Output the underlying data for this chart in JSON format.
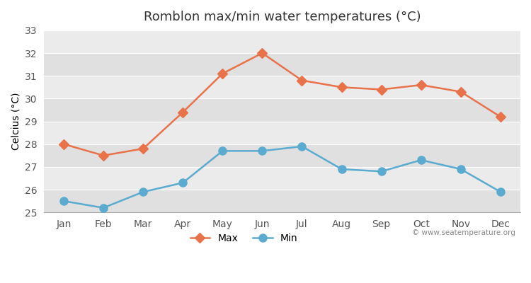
{
  "months": [
    "Jan",
    "Feb",
    "Mar",
    "Apr",
    "May",
    "Jun",
    "Jul",
    "Aug",
    "Sep",
    "Oct",
    "Nov",
    "Dec"
  ],
  "max_temps": [
    28.0,
    27.5,
    27.8,
    29.4,
    31.1,
    32.0,
    30.8,
    30.5,
    30.4,
    30.6,
    30.3,
    29.2
  ],
  "min_temps": [
    25.5,
    25.2,
    25.9,
    26.3,
    27.7,
    27.7,
    27.9,
    26.9,
    26.8,
    27.3,
    26.9,
    25.9
  ],
  "max_color": "#E8724A",
  "min_color": "#5AABCF",
  "title": "Romblon max/min water temperatures (°C)",
  "ylabel": "Celcius (°C)",
  "ylim": [
    25,
    33
  ],
  "yticks": [
    25,
    26,
    27,
    28,
    29,
    30,
    31,
    32,
    33
  ],
  "bg_color": "#ffffff",
  "plot_bg_color": "#ebebeb",
  "band_light": "#ebebeb",
  "band_dark": "#e0e0e0",
  "legend_max": "Max",
  "legend_min": "Min",
  "watermark": "© www.seatemperature.org",
  "max_marker": "D",
  "min_marker": "o",
  "max_markersize": 7,
  "min_markersize": 8,
  "linewidth": 1.8
}
